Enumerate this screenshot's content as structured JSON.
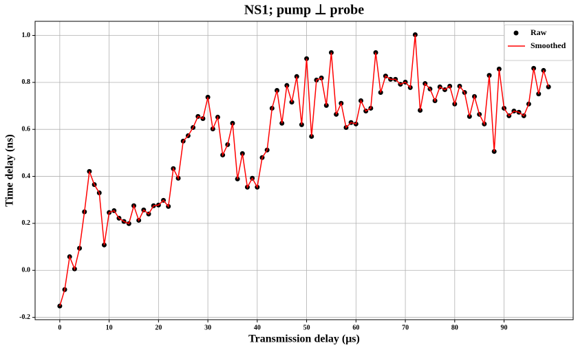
{
  "chart_data": {
    "type": "line",
    "title": "NS1; pump ⊥ probe",
    "x_label": "Transmission delay (μs)",
    "y_label": "Time delay (ns)",
    "x": [
      0,
      1,
      2,
      3,
      4,
      5,
      6,
      7,
      8,
      9,
      10,
      11,
      12,
      13,
      14,
      15,
      16,
      17,
      18,
      19,
      20,
      21,
      22,
      23,
      24,
      25,
      26,
      27,
      28,
      29,
      30,
      31,
      32,
      33,
      34,
      35,
      36,
      37,
      38,
      39,
      40,
      41,
      42,
      43,
      44,
      45,
      46,
      47,
      48,
      49,
      50,
      51,
      52,
      53,
      54,
      55,
      56,
      57,
      58,
      59,
      60,
      61,
      62,
      63,
      64,
      65,
      66,
      67,
      68,
      69,
      70,
      71,
      72,
      73,
      74,
      75,
      76,
      77,
      78,
      79,
      80,
      81,
      82,
      83,
      84,
      85,
      86,
      87,
      88,
      89,
      90,
      91,
      92,
      93,
      94,
      95,
      96,
      97,
      98,
      99
    ],
    "series": [
      {
        "name": "Raw",
        "kind": "scatter",
        "color": "#000000",
        "values": [
          -0.152,
          -0.082,
          0.058,
          0.006,
          0.094,
          0.249,
          0.421,
          0.365,
          0.33,
          0.108,
          0.246,
          0.254,
          0.222,
          0.208,
          0.199,
          0.275,
          0.213,
          0.257,
          0.24,
          0.275,
          0.278,
          0.298,
          0.272,
          0.433,
          0.392,
          0.55,
          0.573,
          0.608,
          0.655,
          0.646,
          0.737,
          0.602,
          0.652,
          0.491,
          0.535,
          0.626,
          0.389,
          0.497,
          0.354,
          0.392,
          0.354,
          0.48,
          0.512,
          0.69,
          0.766,
          0.626,
          0.787,
          0.716,
          0.825,
          0.62,
          0.901,
          0.57,
          0.81,
          0.819,
          0.702,
          0.927,
          0.664,
          0.711,
          0.608,
          0.629,
          0.623,
          0.722,
          0.678,
          0.69,
          0.927,
          0.757,
          0.827,
          0.813,
          0.813,
          0.792,
          0.801,
          0.778,
          1.003,
          0.681,
          0.795,
          0.772,
          0.722,
          0.781,
          0.769,
          0.784,
          0.708,
          0.784,
          0.757,
          0.655,
          0.74,
          0.664,
          0.623,
          0.83,
          0.506,
          0.857,
          0.69,
          0.658,
          0.678,
          0.673,
          0.658,
          0.708,
          0.86,
          0.751,
          0.851,
          0.781
        ]
      },
      {
        "name": "Smoothed",
        "kind": "line",
        "color": "#ff0000",
        "values": [
          -0.152,
          -0.082,
          0.058,
          0.006,
          0.094,
          0.249,
          0.421,
          0.365,
          0.33,
          0.108,
          0.246,
          0.254,
          0.222,
          0.208,
          0.199,
          0.275,
          0.213,
          0.257,
          0.24,
          0.275,
          0.278,
          0.298,
          0.272,
          0.433,
          0.392,
          0.55,
          0.573,
          0.608,
          0.655,
          0.646,
          0.737,
          0.602,
          0.652,
          0.491,
          0.535,
          0.626,
          0.389,
          0.497,
          0.354,
          0.392,
          0.354,
          0.48,
          0.512,
          0.69,
          0.766,
          0.626,
          0.787,
          0.716,
          0.825,
          0.62,
          0.901,
          0.57,
          0.81,
          0.819,
          0.702,
          0.927,
          0.664,
          0.711,
          0.608,
          0.629,
          0.623,
          0.722,
          0.678,
          0.69,
          0.927,
          0.757,
          0.827,
          0.813,
          0.813,
          0.792,
          0.801,
          0.778,
          1.003,
          0.681,
          0.795,
          0.772,
          0.722,
          0.781,
          0.769,
          0.784,
          0.708,
          0.784,
          0.757,
          0.655,
          0.74,
          0.664,
          0.623,
          0.83,
          0.506,
          0.857,
          0.69,
          0.658,
          0.678,
          0.673,
          0.658,
          0.708,
          0.86,
          0.751,
          0.851,
          0.781
        ]
      }
    ],
    "xlim": [
      -5,
      104
    ],
    "ylim": [
      -0.21,
      1.06
    ],
    "xticks": [
      0,
      10,
      20,
      30,
      40,
      50,
      60,
      70,
      80,
      90
    ],
    "yticks": [
      -0.2,
      {
        "value": 0,
        "label": "0.0"
      },
      0.2,
      0.4,
      0.6,
      0.8,
      {
        "value": 1,
        "label": "1.0"
      }
    ],
    "grid": true,
    "legend": "upper right"
  }
}
